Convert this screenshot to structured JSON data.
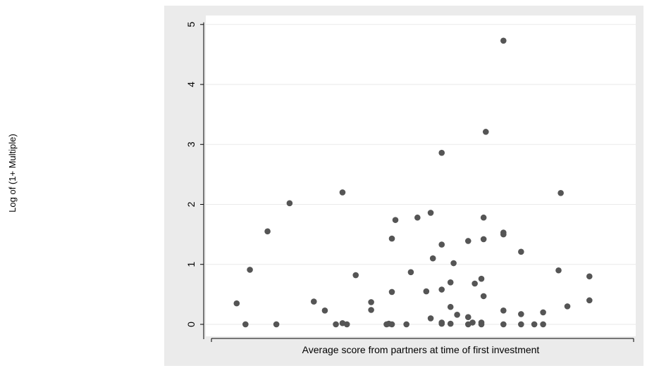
{
  "chart_data": {
    "type": "scatter",
    "xlabel": "Average score from partners at time of first investment",
    "ylabel": "Log of (1+ Multiple)",
    "x_ticks_labeled": false,
    "yticks": [
      "0",
      "1",
      "2",
      "3",
      "4",
      "5"
    ],
    "ylim": [
      -0.2,
      5.15
    ],
    "xlim": [
      -0.5,
      9.25
    ],
    "grid": true,
    "colors": {
      "plot_background": "#ebebeb",
      "panel_background": "#ffffff",
      "marker": "#555555",
      "grid": "#ffffff"
    },
    "points": [
      {
        "x": 0.2,
        "y": 0.35
      },
      {
        "x": 0.4,
        "y": 0.0
      },
      {
        "x": 0.5,
        "y": 0.91
      },
      {
        "x": 0.9,
        "y": 1.55
      },
      {
        "x": 1.1,
        "y": 0.0
      },
      {
        "x": 1.4,
        "y": 2.02
      },
      {
        "x": 1.95,
        "y": 0.38
      },
      {
        "x": 2.2,
        "y": 0.23
      },
      {
        "x": 2.45,
        "y": 0.0
      },
      {
        "x": 2.6,
        "y": 2.2
      },
      {
        "x": 2.6,
        "y": 0.02
      },
      {
        "x": 2.7,
        "y": 0.0
      },
      {
        "x": 2.9,
        "y": 0.82
      },
      {
        "x": 3.25,
        "y": 0.37
      },
      {
        "x": 3.25,
        "y": 0.24
      },
      {
        "x": 3.6,
        "y": 0.0
      },
      {
        "x": 3.65,
        "y": 0.01
      },
      {
        "x": 3.72,
        "y": 1.43
      },
      {
        "x": 3.72,
        "y": 0.54
      },
      {
        "x": 3.72,
        "y": 0.0
      },
      {
        "x": 3.8,
        "y": 1.74
      },
      {
        "x": 4.05,
        "y": 0.0
      },
      {
        "x": 4.15,
        "y": 0.87
      },
      {
        "x": 4.3,
        "y": 1.78
      },
      {
        "x": 4.5,
        "y": 0.55
      },
      {
        "x": 4.6,
        "y": 1.86
      },
      {
        "x": 4.6,
        "y": 0.1
      },
      {
        "x": 4.65,
        "y": 1.1
      },
      {
        "x": 4.85,
        "y": 2.86
      },
      {
        "x": 4.85,
        "y": 1.33
      },
      {
        "x": 4.85,
        "y": 0.58
      },
      {
        "x": 4.85,
        "y": 0.03
      },
      {
        "x": 4.85,
        "y": 0.01
      },
      {
        "x": 5.05,
        "y": 0.7
      },
      {
        "x": 5.05,
        "y": 0.29
      },
      {
        "x": 5.05,
        "y": 0.01
      },
      {
        "x": 5.12,
        "y": 1.02
      },
      {
        "x": 5.2,
        "y": 0.16
      },
      {
        "x": 5.45,
        "y": 1.39
      },
      {
        "x": 5.45,
        "y": 0.12
      },
      {
        "x": 5.45,
        "y": 0.0
      },
      {
        "x": 5.55,
        "y": 0.03
      },
      {
        "x": 5.6,
        "y": 0.68
      },
      {
        "x": 5.75,
        "y": 0.76
      },
      {
        "x": 5.75,
        "y": 0.03
      },
      {
        "x": 5.75,
        "y": 0.0
      },
      {
        "x": 5.8,
        "y": 1.78
      },
      {
        "x": 5.8,
        "y": 1.42
      },
      {
        "x": 5.8,
        "y": 0.47
      },
      {
        "x": 5.85,
        "y": 3.21
      },
      {
        "x": 6.25,
        "y": 4.73
      },
      {
        "x": 6.25,
        "y": 1.53
      },
      {
        "x": 6.25,
        "y": 1.5
      },
      {
        "x": 6.25,
        "y": 0.23
      },
      {
        "x": 6.25,
        "y": 0.0
      },
      {
        "x": 6.65,
        "y": 1.21
      },
      {
        "x": 6.65,
        "y": 0.17
      },
      {
        "x": 6.65,
        "y": 0.0
      },
      {
        "x": 6.95,
        "y": 0.0
      },
      {
        "x": 7.15,
        "y": 0.2
      },
      {
        "x": 7.15,
        "y": 0.0
      },
      {
        "x": 7.5,
        "y": 0.9
      },
      {
        "x": 7.55,
        "y": 2.19
      },
      {
        "x": 7.7,
        "y": 0.3
      },
      {
        "x": 8.2,
        "y": 0.8
      },
      {
        "x": 8.2,
        "y": 0.4
      }
    ]
  }
}
